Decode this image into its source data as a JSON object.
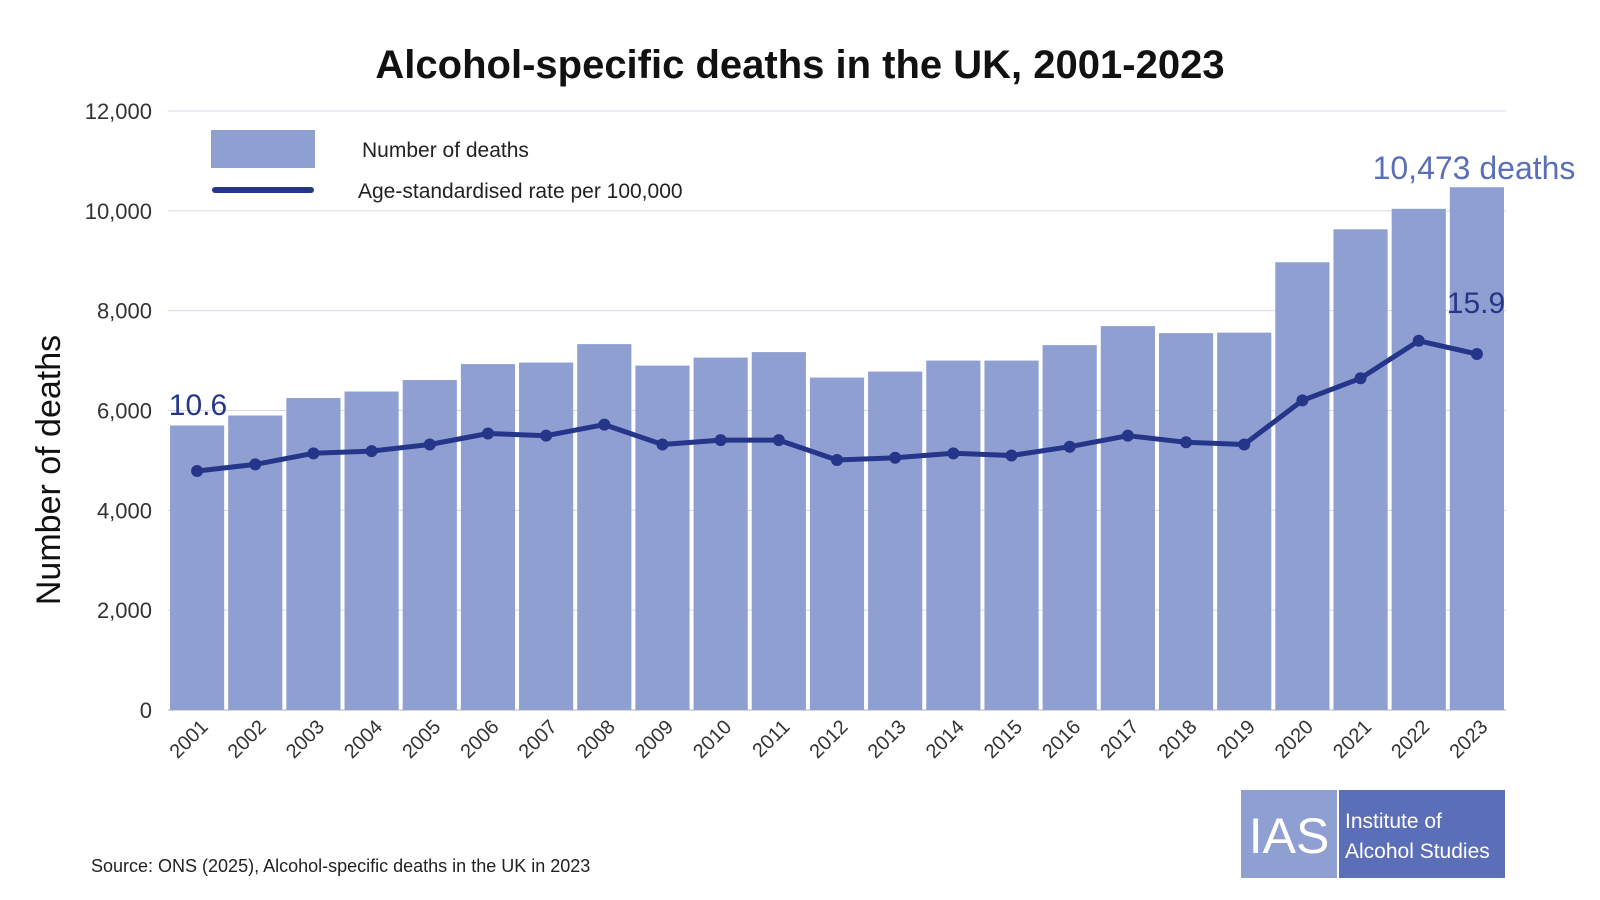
{
  "chart_data": {
    "type": "bar",
    "title": "Alcohol-specific deaths in the UK, 2001-2023",
    "ylabel": "Number of deaths",
    "ylim": [
      0,
      12000
    ],
    "yticks": [
      "0",
      "2,000",
      "4,000",
      "6,000",
      "8,000",
      "10,000",
      "12,000"
    ],
    "categories": [
      "2001",
      "2002",
      "2003",
      "2004",
      "2005",
      "2006",
      "2007",
      "2008",
      "2009",
      "2010",
      "2011",
      "2012",
      "2013",
      "2014",
      "2015",
      "2016",
      "2017",
      "2018",
      "2019",
      "2020",
      "2021",
      "2022",
      "2023"
    ],
    "series": [
      {
        "name": "Number of deaths",
        "type": "bar",
        "color": "#8f9fd1",
        "values": [
          5700,
          5900,
          6250,
          6380,
          6610,
          6930,
          6960,
          7330,
          6900,
          7060,
          7170,
          6660,
          6780,
          7000,
          7000,
          7310,
          7690,
          7550,
          7560,
          8970,
          9630,
          10040,
          10473
        ]
      },
      {
        "name": "Age-standardised rate per 100,000",
        "type": "line",
        "color": "#25368a",
        "values": [
          10.6,
          10.9,
          11.4,
          11.5,
          11.8,
          12.3,
          12.2,
          12.7,
          11.8,
          12.0,
          12.0,
          11.1,
          11.2,
          11.4,
          11.3,
          11.7,
          12.2,
          11.9,
          11.8,
          13.8,
          14.8,
          16.5,
          15.9
        ]
      }
    ],
    "legend_position": "top-left",
    "grid": true,
    "annotations": {
      "first_rate": "10.6",
      "last_deaths": "10,473 deaths",
      "last_rate": "15.9"
    }
  },
  "source": "Source: ONS (2025), Alcohol-specific deaths in the UK in 2023",
  "logo": {
    "abbr": "IAS",
    "line1": "Institute of",
    "line2": "Alcohol Studies"
  },
  "colors": {
    "bar": "#8f9fd1",
    "line": "#25368a",
    "annotation_deaths": "#5b6eb8",
    "annotation_rate": "#25368a",
    "logo_light": "#8f9fd1",
    "logo_dark": "#5b6eb8"
  }
}
